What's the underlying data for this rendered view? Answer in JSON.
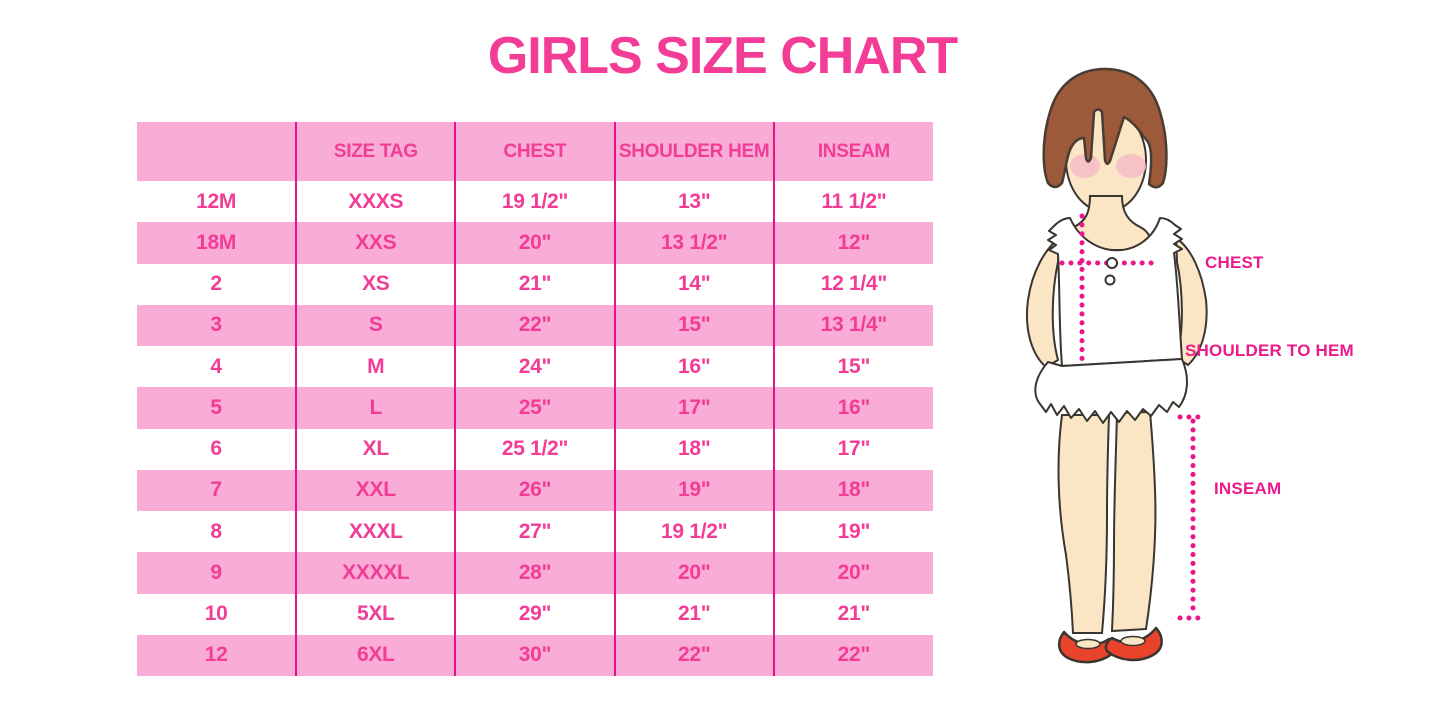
{
  "title": "GIRLS SIZE CHART",
  "table": {
    "headers": [
      "",
      "SIZE TAG",
      "CHEST",
      "SHOULDER HEM",
      "INSEAM"
    ],
    "rows": [
      [
        "12M",
        "XXXS",
        "19 1/2\"",
        "13\"",
        "11 1/2\""
      ],
      [
        "18M",
        "XXS",
        "20\"",
        "13 1/2\"",
        "12\""
      ],
      [
        "2",
        "XS",
        "21\"",
        "14\"",
        "12 1/4\""
      ],
      [
        "3",
        "S",
        "22\"",
        "15\"",
        "13 1/4\""
      ],
      [
        "4",
        "M",
        "24\"",
        "16\"",
        "15\""
      ],
      [
        "5",
        "L",
        "25\"",
        "17\"",
        "16\""
      ],
      [
        "6",
        "XL",
        "25 1/2\"",
        "18\"",
        "17\""
      ],
      [
        "7",
        "XXL",
        "26\"",
        "19\"",
        "18\""
      ],
      [
        "8",
        "XXXL",
        "27\"",
        "19 1/2\"",
        "19\""
      ],
      [
        "9",
        "XXXXL",
        "28\"",
        "20\"",
        "20\""
      ],
      [
        "10",
        "5XL",
        "29\"",
        "21\"",
        "21\""
      ],
      [
        "12",
        "6XL",
        "30\"",
        "22\"",
        "22\""
      ]
    ]
  },
  "figure": {
    "labels": {
      "chest": "CHEST",
      "shoulder_to_hem": "SHOULDER TO HEM",
      "inseam": "INSEAM"
    }
  },
  "colors": {
    "title_pink": "#F23C96",
    "table_row_pink": "#F9ADD6",
    "table_divider_pink": "#E6138B",
    "label_magenta": "#EB1A8D",
    "dotted_line_pink": "#EC168C",
    "hair_brown": "#9C5A3A",
    "skin": "#FAE6C4",
    "blush_pink": "#F4BBC6",
    "shoe_red": "#E9432C",
    "outline_dark": "#3B3530"
  }
}
